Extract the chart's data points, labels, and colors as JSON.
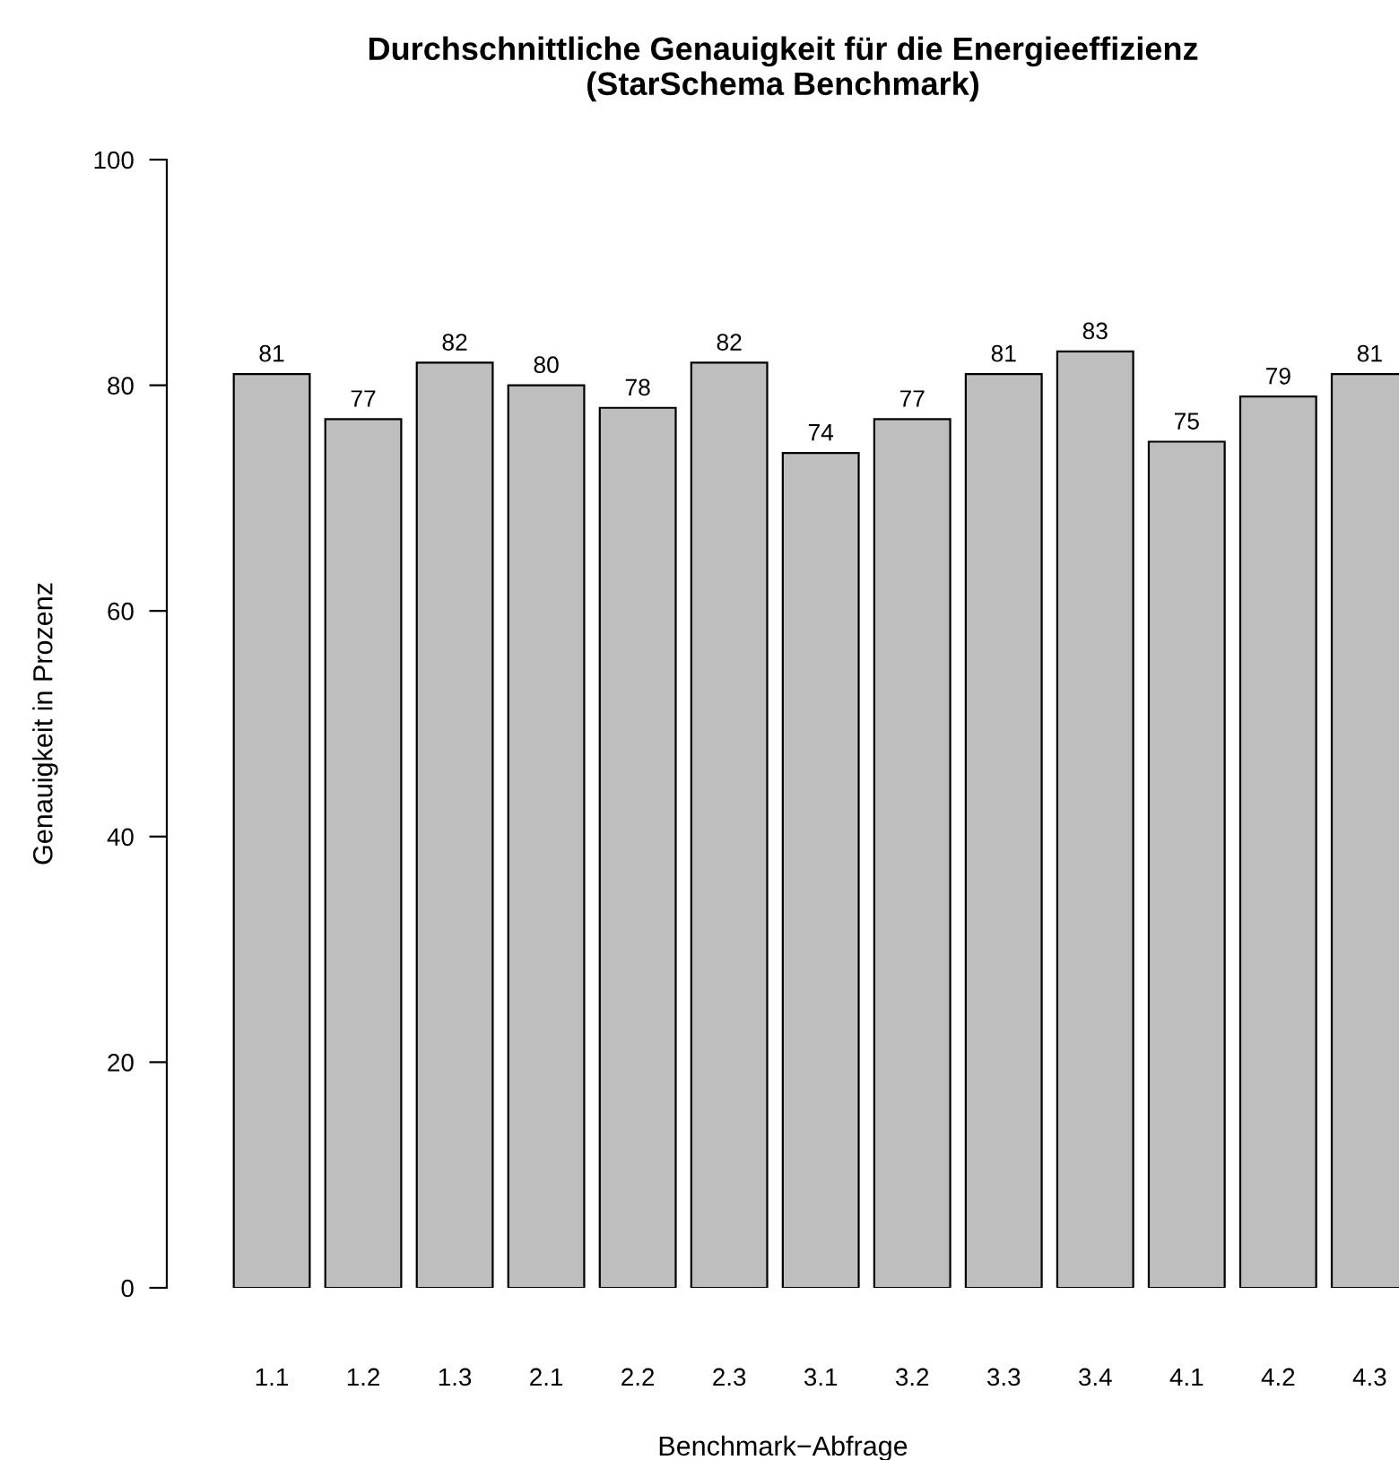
{
  "chart_data": {
    "type": "bar",
    "title": "Durchschnittliche Genauigkeit für die Energieeffizienz\n(StarSchema Benchmark)",
    "xlabel": "Benchmark−Abfrage",
    "ylabel": "Genauigkeit in Prozenz",
    "categories": [
      "1.1",
      "1.2",
      "1.3",
      "2.1",
      "2.2",
      "2.3",
      "3.1",
      "3.2",
      "3.3",
      "3.4",
      "4.1",
      "4.2",
      "4.3"
    ],
    "values": [
      81,
      77,
      82,
      80,
      78,
      82,
      74,
      77,
      81,
      83,
      75,
      79,
      81
    ],
    "color": "#bebebe",
    "ylim": [
      0,
      100
    ],
    "yticks": [
      0,
      20,
      40,
      60,
      80,
      100
    ],
    "data_labels": true,
    "grid": false,
    "legend": false
  }
}
